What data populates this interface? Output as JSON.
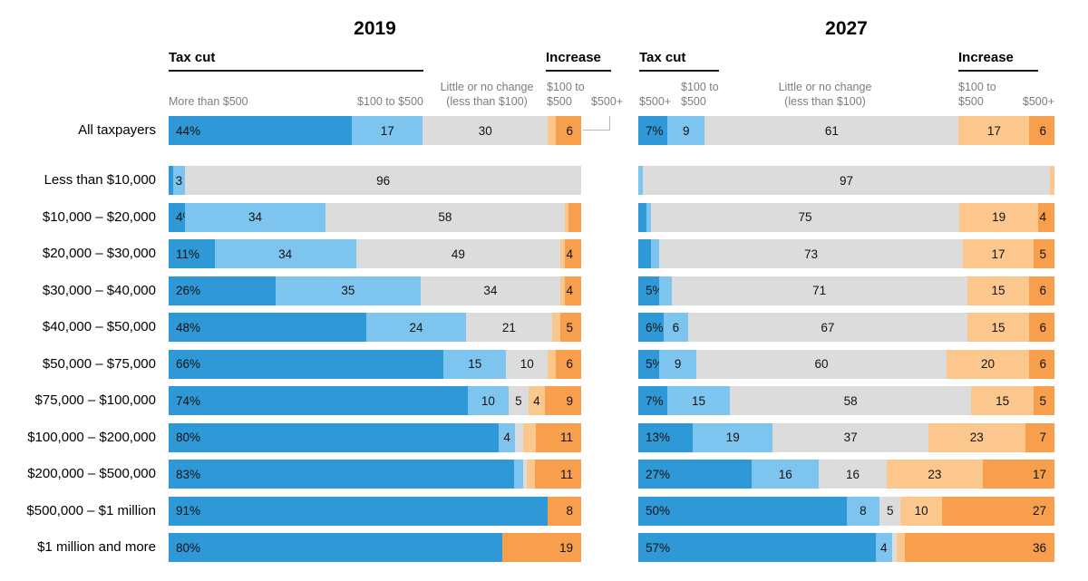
{
  "page": {
    "background": "#ffffff"
  },
  "panels": {
    "p2019": {
      "title": "2019",
      "tax_cut_header": "Tax cut",
      "increase_header": "Increase",
      "col_more_500": "More than $500",
      "col_100_500": "$100 to $500",
      "col_no_change": [
        "Little or no change",
        "(less than $100)"
      ],
      "col_inc_100_500": [
        "$100 to",
        "$500"
      ],
      "col_inc_500": "$500+"
    },
    "p2027": {
      "title": "2027",
      "tax_cut_header": "Tax cut",
      "increase_header": "Increase",
      "col_cut_500": "$500+",
      "col_cut_100_500": [
        "$100 to",
        "$500"
      ],
      "col_no_change": [
        "Little or no change",
        "(less than $100)"
      ],
      "col_inc_100_500": [
        "$100 to",
        "$500"
      ],
      "col_inc_500": "$500+"
    }
  },
  "chart_data": {
    "type": "bar",
    "subtype": "horizontal-stacked-100percent",
    "unit": "percent of taxpayers in income group",
    "legend_position": "column-headers-top",
    "segment_keys": [
      "cut-more-than-500",
      "cut-100-to-500",
      "little-or-no-change",
      "increase-100-to-500",
      "increase-500-plus"
    ],
    "segment_names": [
      "Tax cut more than $500",
      "Tax cut $100 to $500",
      "Little or no change (less than $100)",
      "Increase $100 to $500",
      "Increase $500+"
    ],
    "segment_colors": [
      "#2f99d7",
      "#7dc5ee",
      "#dcdcdc",
      "#fbc78c",
      "#f89f4d"
    ],
    "categories": [
      "All taxpayers",
      "Less than $10,000",
      "$10,000 – $20,000",
      "$20,000 – $30,000",
      "$30,000 – $40,000",
      "$40,000 – $50,000",
      "$50,000 – $75,000",
      "$75,000 – $100,000",
      "$100,000 – $200,000",
      "$200,000 – $500,000",
      "$500,000 – $1 million",
      "$1 million and more"
    ],
    "panels": [
      {
        "title": "2019",
        "rows": [
          {
            "values": [
              44,
              17,
              30,
              2,
              6
            ],
            "labels": [
              "44%",
              "17",
              "30",
              "",
              "6"
            ]
          },
          {
            "values": [
              1,
              3,
              96,
              0,
              0
            ],
            "labels": [
              "",
              "3",
              "96",
              "",
              ""
            ]
          },
          {
            "values": [
              4,
              34,
              58,
              1,
              3
            ],
            "labels": [
              "4%",
              "34",
              "58",
              "",
              ""
            ]
          },
          {
            "values": [
              11,
              34,
              49,
              1,
              4
            ],
            "labels": [
              "11%",
              "34",
              "49",
              "",
              "4"
            ]
          },
          {
            "values": [
              26,
              35,
              34,
              1,
              4
            ],
            "labels": [
              "26%",
              "35",
              "34",
              "",
              "4"
            ]
          },
          {
            "values": [
              48,
              24,
              21,
              2,
              5
            ],
            "labels": [
              "48%",
              "24",
              "21",
              "",
              "5"
            ]
          },
          {
            "values": [
              66,
              15,
              10,
              2,
              6
            ],
            "labels": [
              "66%",
              "15",
              "10",
              "",
              "6"
            ]
          },
          {
            "values": [
              74,
              10,
              5,
              4,
              9
            ],
            "labels": [
              "74%",
              "10",
              "5",
              "4",
              "9"
            ]
          },
          {
            "values": [
              80,
              4,
              2,
              3,
              11
            ],
            "labels": [
              "80%",
              "4",
              "",
              "",
              "11"
            ]
          },
          {
            "values": [
              83,
              2,
              1,
              2,
              11
            ],
            "labels": [
              "83%",
              "",
              "",
              "",
              "11"
            ]
          },
          {
            "values": [
              91,
              0,
              0,
              0,
              8
            ],
            "labels": [
              "91%",
              "",
              "",
              "",
              "8"
            ]
          },
          {
            "values": [
              80,
              0,
              0,
              0,
              19
            ],
            "labels": [
              "80%",
              "",
              "",
              "",
              "19"
            ]
          }
        ]
      },
      {
        "title": "2027",
        "rows": [
          {
            "values": [
              7,
              9,
              61,
              17,
              6
            ],
            "labels": [
              "7%",
              "9",
              "61",
              "17",
              "6"
            ]
          },
          {
            "values": [
              0,
              1,
              97,
              1,
              0
            ],
            "labels": [
              "",
              "",
              "97",
              "",
              ""
            ]
          },
          {
            "values": [
              2,
              1,
              75,
              19,
              4
            ],
            "labels": [
              "",
              "",
              "75",
              "19",
              "4"
            ]
          },
          {
            "values": [
              3,
              2,
              73,
              17,
              5
            ],
            "labels": [
              "",
              "",
              "73",
              "17",
              "5"
            ]
          },
          {
            "values": [
              5,
              3,
              71,
              15,
              6
            ],
            "labels": [
              "5%",
              "",
              "71",
              "15",
              "6"
            ]
          },
          {
            "values": [
              6,
              6,
              67,
              15,
              6
            ],
            "labels": [
              "6%",
              "6",
              "67",
              "15",
              "6"
            ]
          },
          {
            "values": [
              5,
              9,
              60,
              20,
              6
            ],
            "labels": [
              "5%",
              "9",
              "60",
              "20",
              "6"
            ]
          },
          {
            "values": [
              7,
              15,
              58,
              15,
              5
            ],
            "labels": [
              "7%",
              "15",
              "58",
              "15",
              "5"
            ]
          },
          {
            "values": [
              13,
              19,
              37,
              23,
              7
            ],
            "labels": [
              "13%",
              "19",
              "37",
              "23",
              "7"
            ]
          },
          {
            "values": [
              27,
              16,
              16,
              23,
              17
            ],
            "labels": [
              "27%",
              "16",
              "16",
              "23",
              "17"
            ]
          },
          {
            "values": [
              50,
              8,
              5,
              10,
              27
            ],
            "labels": [
              "50%",
              "8",
              "5",
              "10",
              "27"
            ]
          },
          {
            "values": [
              57,
              4,
              1,
              2,
              36
            ],
            "labels": [
              "57%",
              "4",
              "",
              "",
              "36"
            ]
          }
        ]
      }
    ]
  }
}
